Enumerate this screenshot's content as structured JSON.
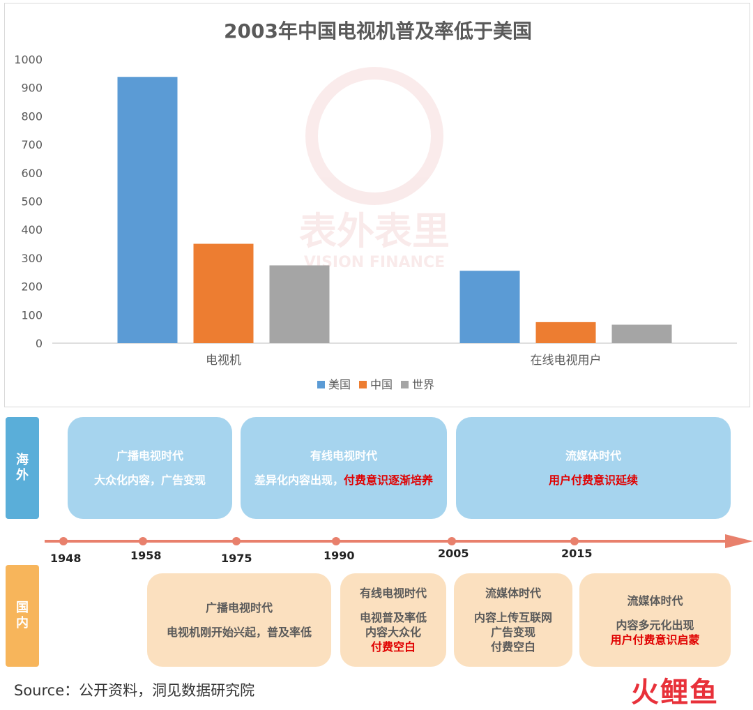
{
  "chart_data": {
    "type": "bar",
    "title": "2003年中国电视机普及率低于美国",
    "categories": [
      "电视机",
      "在线电视用户"
    ],
    "series": [
      {
        "name": "美国",
        "color": "#5b9bd5",
        "values": [
          938,
          255
        ]
      },
      {
        "name": "中国",
        "color": "#ed7d31",
        "values": [
          350,
          74
        ]
      },
      {
        "name": "世界",
        "color": "#a5a5a5",
        "values": [
          274,
          65
        ]
      }
    ],
    "ylim": [
      0,
      1000
    ],
    "yticks": [
      0,
      100,
      200,
      300,
      400,
      500,
      600,
      700,
      800,
      900,
      1000
    ],
    "legend_position": "bottom",
    "grid": false
  },
  "watermark": {
    "text": "表外表里",
    "subtext": "VISION FINANCE"
  },
  "timeline": {
    "overseas_label": "海外",
    "domestic_label": "国内",
    "years": [
      "1948",
      "1958",
      "1975",
      "1990",
      "2005",
      "2015"
    ],
    "line_color": "#e8806c",
    "overseas": [
      {
        "title": "广播电视时代",
        "line1": "大众化内容，广告变现",
        "red": ""
      },
      {
        "title": "有线电视时代",
        "line1": "差异化内容出现，",
        "red": "付费意识逐渐培养"
      },
      {
        "title": "流媒体时代",
        "line1": "",
        "red": "用户付费意识延续"
      }
    ],
    "domestic": [
      {
        "title": "广播电视时代",
        "line1": "电视机刚开始兴起，普及率低",
        "line2": "",
        "line3": "",
        "red": ""
      },
      {
        "title": "有线电视时代",
        "line1": "电视普及率低",
        "line2": "内容大众化",
        "line3": "",
        "red": "付费空白"
      },
      {
        "title": "流媒体时代",
        "line1": "内容上传互联网",
        "line2": "广告变现",
        "line3": "付费空白",
        "red": ""
      },
      {
        "title": "流媒体时代",
        "line1": "内容多元化出现",
        "line2": "",
        "line3": "",
        "red": "用户付费意识启蒙"
      }
    ]
  },
  "source": "Source：公开资料，洞见数据研究院",
  "logo": "火鲤鱼"
}
